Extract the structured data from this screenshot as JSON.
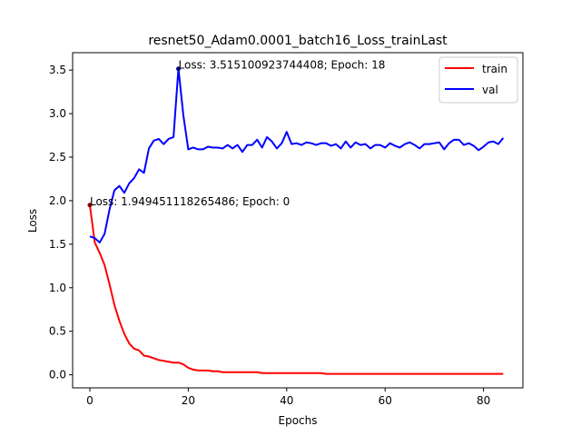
{
  "chart_data": {
    "type": "line",
    "title": "resnet50_Adam0.0001_batch16_Loss_trainLast",
    "xlabel": "Epochs",
    "ylabel": "Loss",
    "xlim": [
      -3.5,
      88
    ],
    "ylim": [
      -0.15,
      3.7
    ],
    "xticks": [
      0,
      20,
      40,
      60,
      80
    ],
    "yticks": [
      0.0,
      0.5,
      1.0,
      1.5,
      2.0,
      2.5,
      3.0,
      3.5
    ],
    "xtick_labels": [
      "0",
      "20",
      "40",
      "60",
      "80"
    ],
    "ytick_labels": [
      "0.0",
      "0.5",
      "1.0",
      "1.5",
      "2.0",
      "2.5",
      "3.0",
      "3.5"
    ],
    "grid": false,
    "legend_position": "top-right",
    "series": [
      {
        "name": "train",
        "color": "#ff0000",
        "x": [
          0,
          1,
          2,
          3,
          4,
          5,
          6,
          7,
          8,
          9,
          10,
          11,
          12,
          13,
          14,
          15,
          16,
          17,
          18,
          19,
          20,
          21,
          22,
          23,
          24,
          25,
          26,
          27,
          28,
          29,
          30,
          31,
          32,
          33,
          34,
          35,
          36,
          37,
          38,
          39,
          40,
          41,
          42,
          43,
          44,
          45,
          46,
          47,
          48,
          49,
          50,
          51,
          52,
          53,
          54,
          55,
          56,
          57,
          58,
          59,
          60,
          61,
          62,
          63,
          64,
          65,
          66,
          67,
          68,
          69,
          70,
          71,
          72,
          73,
          74,
          75,
          76,
          77,
          78,
          79,
          80,
          81,
          82,
          83,
          84
        ],
        "values": [
          1.95,
          1.52,
          1.4,
          1.26,
          1.04,
          0.8,
          0.62,
          0.47,
          0.36,
          0.3,
          0.28,
          0.22,
          0.21,
          0.19,
          0.17,
          0.16,
          0.15,
          0.14,
          0.14,
          0.12,
          0.08,
          0.06,
          0.05,
          0.05,
          0.05,
          0.04,
          0.04,
          0.03,
          0.03,
          0.03,
          0.03,
          0.03,
          0.03,
          0.03,
          0.03,
          0.02,
          0.02,
          0.02,
          0.02,
          0.02,
          0.02,
          0.02,
          0.02,
          0.02,
          0.02,
          0.02,
          0.02,
          0.02,
          0.01,
          0.01,
          0.01,
          0.01,
          0.01,
          0.01,
          0.01,
          0.01,
          0.01,
          0.01,
          0.01,
          0.01,
          0.01,
          0.01,
          0.01,
          0.01,
          0.01,
          0.01,
          0.01,
          0.01,
          0.01,
          0.01,
          0.01,
          0.01,
          0.01,
          0.01,
          0.01,
          0.01,
          0.01,
          0.01,
          0.01,
          0.01,
          0.01,
          0.01,
          0.01,
          0.01,
          0.01
        ]
      },
      {
        "name": "val",
        "color": "#0000ff",
        "x": [
          0,
          1,
          2,
          3,
          4,
          5,
          6,
          7,
          8,
          9,
          10,
          11,
          12,
          13,
          14,
          15,
          16,
          17,
          18,
          19,
          20,
          21,
          22,
          23,
          24,
          25,
          26,
          27,
          28,
          29,
          30,
          31,
          32,
          33,
          34,
          35,
          36,
          37,
          38,
          39,
          40,
          41,
          42,
          43,
          44,
          45,
          46,
          47,
          48,
          49,
          50,
          51,
          52,
          53,
          54,
          55,
          56,
          57,
          58,
          59,
          60,
          61,
          62,
          63,
          64,
          65,
          66,
          67,
          68,
          69,
          70,
          71,
          72,
          73,
          74,
          75,
          76,
          77,
          78,
          79,
          80,
          81,
          82,
          83,
          84
        ],
        "values": [
          1.59,
          1.57,
          1.52,
          1.62,
          1.9,
          2.12,
          2.17,
          2.09,
          2.2,
          2.26,
          2.36,
          2.32,
          2.6,
          2.69,
          2.71,
          2.65,
          2.71,
          2.73,
          3.52,
          2.98,
          2.59,
          2.61,
          2.59,
          2.59,
          2.62,
          2.61,
          2.61,
          2.6,
          2.64,
          2.6,
          2.64,
          2.56,
          2.64,
          2.64,
          2.7,
          2.61,
          2.73,
          2.68,
          2.6,
          2.66,
          2.79,
          2.65,
          2.66,
          2.64,
          2.67,
          2.66,
          2.64,
          2.66,
          2.66,
          2.63,
          2.65,
          2.6,
          2.68,
          2.61,
          2.67,
          2.64,
          2.65,
          2.6,
          2.64,
          2.64,
          2.61,
          2.66,
          2.63,
          2.61,
          2.65,
          2.67,
          2.64,
          2.6,
          2.65,
          2.65,
          2.66,
          2.67,
          2.59,
          2.66,
          2.7,
          2.7,
          2.64,
          2.66,
          2.63,
          2.58,
          2.62,
          2.67,
          2.68,
          2.65,
          2.72
        ]
      }
    ],
    "annotations": [
      {
        "text": "Loss: 1.949451118265486; Epoch: 0",
        "x": 0,
        "y": 1.949451118265486,
        "color": "#8b0000"
      },
      {
        "text": "Loss: 3.515100923744408; Epoch: 18",
        "x": 18,
        "y": 3.515100923744408,
        "color": "#00008b"
      }
    ]
  }
}
